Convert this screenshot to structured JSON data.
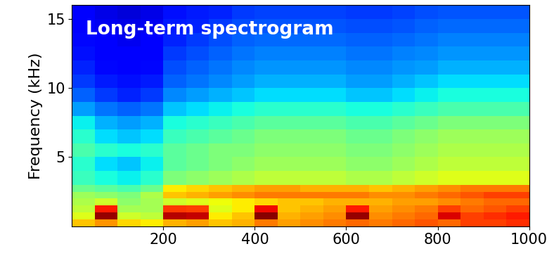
{
  "chart_data": {
    "type": "heatmap",
    "title": "Long-term spectrogram",
    "y_label": "Frequency (kHz)",
    "xlim": [
      0,
      1000
    ],
    "xticks": [
      200,
      400,
      600,
      800,
      1000
    ],
    "ylim": [
      0,
      16
    ],
    "yticks": [
      5,
      10,
      15
    ],
    "x_edges": [
      0,
      50,
      100,
      150,
      200,
      250,
      300,
      350,
      400,
      450,
      500,
      550,
      600,
      650,
      700,
      750,
      800,
      850,
      900,
      950,
      1000
    ],
    "y_edges": [
      0,
      0.5,
      1,
      1.5,
      2,
      2.5,
      3,
      4,
      5,
      6,
      7,
      8,
      9,
      10,
      11,
      12,
      13,
      14,
      15,
      16
    ],
    "color_range": [
      0,
      100
    ],
    "cells": [
      [
        70,
        75,
        68,
        66,
        72,
        74,
        70,
        72,
        78,
        74,
        76,
        78,
        80,
        78,
        80,
        82,
        80,
        84,
        84,
        86
      ],
      [
        62,
        98,
        60,
        58,
        95,
        94,
        66,
        70,
        99,
        72,
        74,
        76,
        98,
        76,
        78,
        80,
        92,
        84,
        86,
        88
      ],
      [
        58,
        88,
        55,
        55,
        85,
        84,
        62,
        66,
        90,
        70,
        72,
        74,
        88,
        74,
        76,
        78,
        84,
        80,
        82,
        84
      ],
      [
        56,
        60,
        52,
        55,
        60,
        62,
        64,
        66,
        68,
        70,
        70,
        72,
        72,
        72,
        74,
        74,
        76,
        78,
        80,
        80
      ],
      [
        54,
        52,
        50,
        56,
        70,
        72,
        74,
        76,
        78,
        78,
        78,
        78,
        78,
        76,
        76,
        78,
        80,
        82,
        84,
        84
      ],
      [
        48,
        46,
        44,
        48,
        66,
        68,
        70,
        72,
        74,
        74,
        72,
        72,
        72,
        70,
        72,
        74,
        76,
        78,
        78,
        78
      ],
      [
        42,
        38,
        36,
        40,
        50,
        52,
        54,
        56,
        58,
        58,
        58,
        58,
        56,
        56,
        58,
        60,
        62,
        62,
        62,
        62
      ],
      [
        40,
        34,
        32,
        36,
        46,
        48,
        50,
        52,
        54,
        54,
        54,
        54,
        52,
        52,
        54,
        56,
        58,
        58,
        58,
        58
      ],
      [
        44,
        40,
        38,
        40,
        46,
        48,
        50,
        50,
        52,
        52,
        52,
        52,
        50,
        50,
        52,
        54,
        56,
        56,
        56,
        56
      ],
      [
        40,
        34,
        32,
        34,
        42,
        44,
        46,
        48,
        50,
        50,
        50,
        50,
        48,
        48,
        50,
        52,
        54,
        54,
        54,
        54
      ],
      [
        36,
        30,
        28,
        30,
        38,
        40,
        42,
        44,
        46,
        46,
        46,
        46,
        44,
        44,
        46,
        48,
        50,
        50,
        50,
        50
      ],
      [
        28,
        24,
        22,
        24,
        32,
        34,
        36,
        38,
        40,
        40,
        40,
        40,
        38,
        38,
        40,
        42,
        44,
        44,
        44,
        44
      ],
      [
        22,
        18,
        16,
        18,
        26,
        28,
        30,
        32,
        34,
        34,
        34,
        34,
        32,
        32,
        34,
        36,
        38,
        38,
        38,
        38
      ],
      [
        18,
        15,
        14,
        15,
        22,
        24,
        26,
        28,
        30,
        30,
        30,
        30,
        28,
        28,
        30,
        32,
        34,
        34,
        34,
        34
      ],
      [
        16,
        13,
        12,
        13,
        20,
        22,
        24,
        26,
        27,
        27,
        27,
        27,
        26,
        26,
        27,
        28,
        30,
        30,
        30,
        30
      ],
      [
        14,
        12,
        11,
        12,
        18,
        20,
        22,
        24,
        25,
        25,
        25,
        25,
        24,
        24,
        25,
        26,
        27,
        27,
        27,
        27
      ],
      [
        13,
        11,
        10,
        11,
        16,
        18,
        20,
        22,
        23,
        23,
        23,
        23,
        22,
        22,
        23,
        24,
        25,
        25,
        25,
        25
      ],
      [
        12,
        10,
        9,
        10,
        15,
        16,
        18,
        20,
        21,
        21,
        21,
        21,
        20,
        20,
        21,
        22,
        23,
        23,
        23,
        23
      ],
      [
        11,
        9,
        8,
        9,
        14,
        15,
        16,
        18,
        19,
        19,
        19,
        19,
        18,
        18,
        19,
        20,
        21,
        21,
        21,
        21
      ]
    ]
  }
}
